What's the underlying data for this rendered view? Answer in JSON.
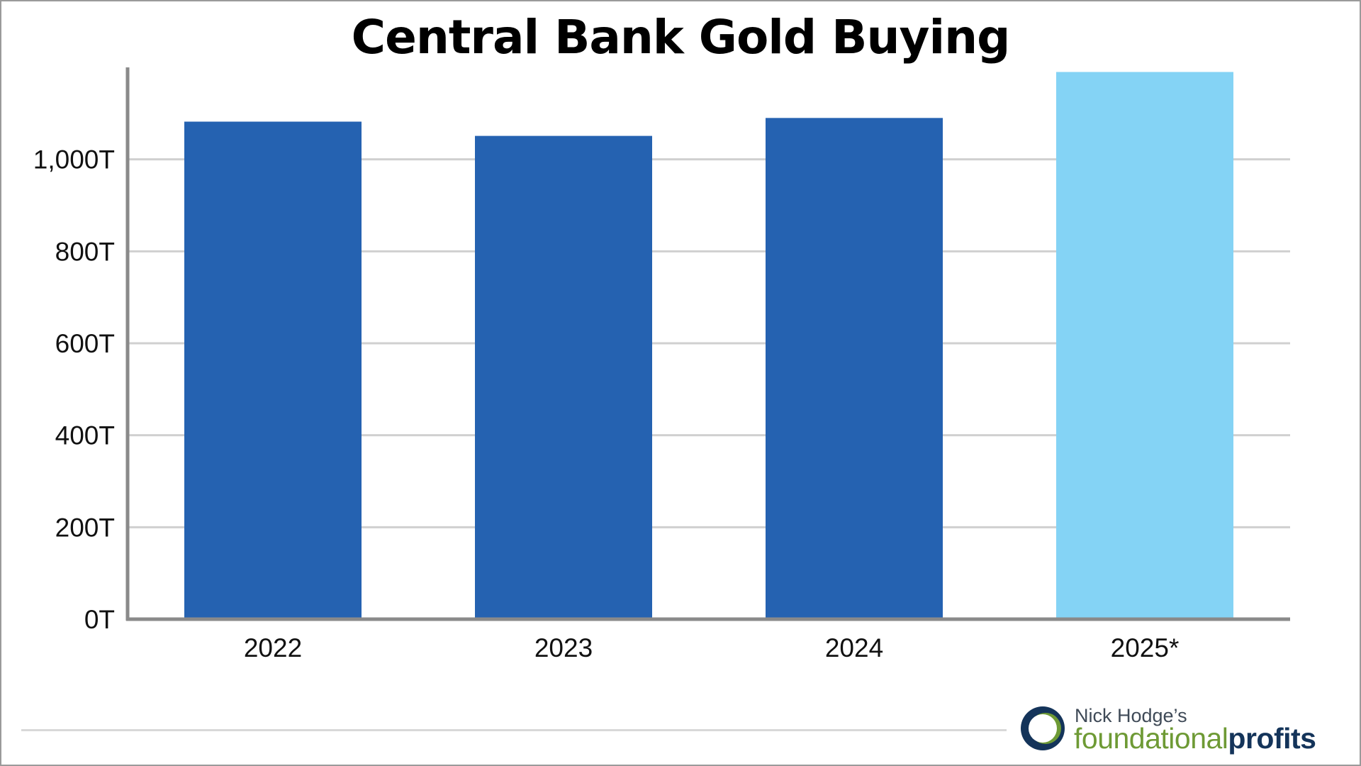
{
  "chart_data": {
    "type": "bar",
    "title": "Central Bank Gold Buying",
    "xlabel": "",
    "ylabel": "",
    "categories": [
      "2022",
      "2023",
      "2024",
      "2025*"
    ],
    "values": [
      1082,
      1051,
      1090,
      1190
    ],
    "bar_colors": [
      "#2562b1",
      "#2562b1",
      "#2562b1",
      "#84d3f5"
    ],
    "y_ticks": [
      0,
      200,
      400,
      600,
      800,
      1000
    ],
    "y_tick_labels": [
      "0T",
      "200T",
      "400T",
      "600T",
      "800T",
      "1,000T"
    ],
    "ylim": [
      0,
      1200
    ],
    "grid": true,
    "colors": {
      "primary_bar": "#2562b1",
      "highlight_bar": "#84d3f5",
      "grid": "#d0d0d0",
      "axis": "#8a8a8a"
    }
  },
  "branding": {
    "prefix": "Nick Hodge’s",
    "name_part1": "foundational",
    "name_part2": "profits"
  }
}
